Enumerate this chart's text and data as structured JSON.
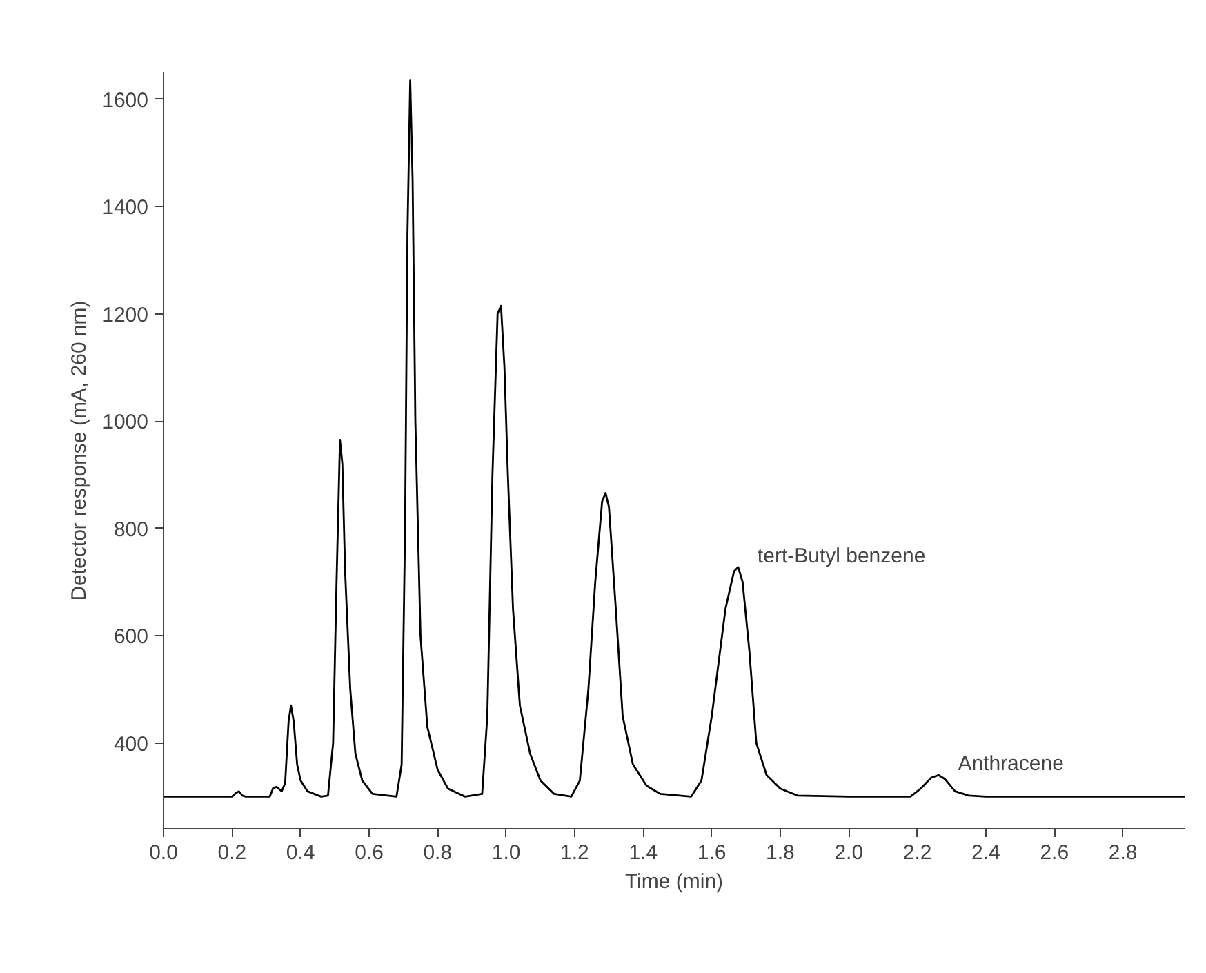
{
  "chart_data": {
    "type": "line",
    "xlabel": "Time (min)",
    "ylabel": "Detector response (mA, 260 nm)",
    "x": [
      0.0,
      0.2,
      0.21,
      0.22,
      0.23,
      0.24,
      0.31,
      0.32,
      0.33,
      0.345,
      0.355,
      0.365,
      0.372,
      0.38,
      0.39,
      0.4,
      0.42,
      0.46,
      0.48,
      0.495,
      0.505,
      0.515,
      0.522,
      0.53,
      0.545,
      0.56,
      0.58,
      0.61,
      0.68,
      0.695,
      0.705,
      0.712,
      0.72,
      0.727,
      0.735,
      0.75,
      0.77,
      0.8,
      0.83,
      0.88,
      0.93,
      0.945,
      0.96,
      0.975,
      0.985,
      0.995,
      1.005,
      1.02,
      1.04,
      1.07,
      1.1,
      1.14,
      1.19,
      1.215,
      1.24,
      1.26,
      1.28,
      1.29,
      1.3,
      1.32,
      1.34,
      1.37,
      1.41,
      1.45,
      1.54,
      1.57,
      1.6,
      1.64,
      1.665,
      1.677,
      1.69,
      1.71,
      1.73,
      1.76,
      1.8,
      1.85,
      2.0,
      2.18,
      2.21,
      2.24,
      2.262,
      2.28,
      2.31,
      2.35,
      2.4,
      2.98
    ],
    "series": [
      {
        "color": "#000000",
        "values": [
          300,
          300,
          306,
          310,
          302,
          300,
          300,
          316,
          318,
          310,
          325,
          440,
          470,
          440,
          360,
          330,
          310,
          300,
          302,
          400,
          700,
          965,
          920,
          720,
          500,
          380,
          330,
          305,
          300,
          360,
          800,
          1350,
          1635,
          1450,
          1000,
          600,
          430,
          350,
          315,
          300,
          305,
          450,
          900,
          1200,
          1215,
          1100,
          900,
          650,
          470,
          380,
          330,
          305,
          300,
          330,
          500,
          700,
          850,
          866,
          840,
          650,
          450,
          360,
          320,
          305,
          300,
          330,
          450,
          650,
          720,
          728,
          700,
          570,
          400,
          340,
          315,
          302,
          300,
          300,
          315,
          335,
          340,
          333,
          310,
          302,
          300,
          300
        ]
      }
    ],
    "xlim": [
      0,
      2.98
    ],
    "ylim": [
      240,
      1650
    ],
    "xticks": [
      {
        "value": 0,
        "label": "0.0"
      },
      {
        "value": 0.2,
        "label": "0.2"
      },
      {
        "value": 0.4,
        "label": "0.4"
      },
      {
        "value": 0.6,
        "label": "0.6"
      },
      {
        "value": 0.8,
        "label": "0.8"
      },
      {
        "value": 1.0,
        "label": "1.0"
      },
      {
        "value": 1.2,
        "label": "1.2"
      },
      {
        "value": 1.4,
        "label": "1.4"
      },
      {
        "value": 1.6,
        "label": "1.6"
      },
      {
        "value": 1.8,
        "label": "1.8"
      },
      {
        "value": 2.0,
        "label": "2.0"
      },
      {
        "value": 2.2,
        "label": "2.2"
      },
      {
        "value": 2.4,
        "label": "2.4"
      },
      {
        "value": 2.6,
        "label": "2.6"
      },
      {
        "value": 2.8,
        "label": "2.8"
      }
    ],
    "yticks": [
      400,
      600,
      800,
      1000,
      1200,
      1400,
      1600
    ],
    "grid": false,
    "marker": "none",
    "line_style": "solid",
    "annotations": [
      {
        "text": "tert-Butyl benzene",
        "x": 1.677,
        "y": 728
      },
      {
        "text": "Anthracene",
        "x": 2.262,
        "y": 340
      }
    ]
  }
}
